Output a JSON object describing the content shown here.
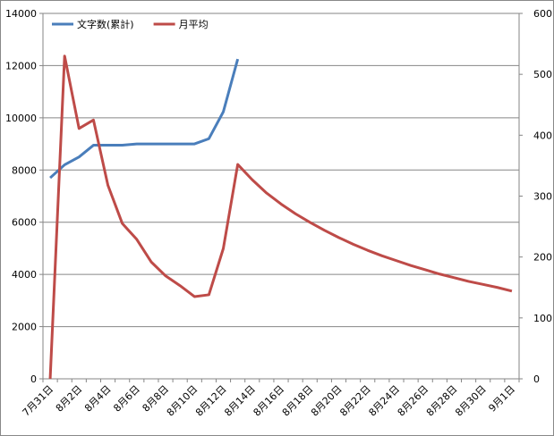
{
  "chart_data": {
    "type": "line",
    "categories": [
      "7月31日",
      null,
      "8月2日",
      null,
      "8月4日",
      null,
      "8月6日",
      null,
      "8月8日",
      null,
      "8月10日",
      null,
      "8月12日",
      null,
      "8月14日",
      null,
      "8月16日",
      null,
      "8月18日",
      null,
      "8月20日",
      null,
      "8月22日",
      null,
      "8月24日",
      null,
      "8月26日",
      null,
      "8月28日",
      null,
      "8月30日",
      null,
      "9月1日"
    ],
    "series": [
      {
        "name": "文字数(累計)",
        "color": "#4a7ebb",
        "values": [
          7700,
          8200,
          8500,
          8950,
          8950,
          8950,
          9000,
          9000,
          9000,
          9000,
          9000,
          9200,
          10230,
          12250,
          null,
          null,
          null,
          null,
          null,
          null,
          null,
          null,
          null,
          null,
          null,
          null,
          null,
          null,
          null,
          null,
          null,
          null,
          null
        ]
      },
      {
        "name": "月平均",
        "color": "#be4b48",
        "axis": "y2",
        "values": [
          0,
          530,
          411,
          425,
          318,
          255,
          229,
          192,
          169,
          153,
          135,
          138,
          214,
          352,
          327,
          305,
          287,
          271,
          257,
          244,
          232,
          221,
          211,
          202,
          194,
          186,
          179,
          172,
          166,
          160,
          155,
          150,
          144
        ]
      }
    ],
    "ylim": [
      0,
      14000
    ],
    "yticks": [
      0,
      2000,
      4000,
      6000,
      8000,
      10000,
      12000,
      14000
    ],
    "y2lim": [
      0,
      600
    ],
    "y2ticks": [
      0,
      100,
      200,
      300,
      400,
      500,
      600
    ],
    "grid": true,
    "legend": "top-left"
  }
}
